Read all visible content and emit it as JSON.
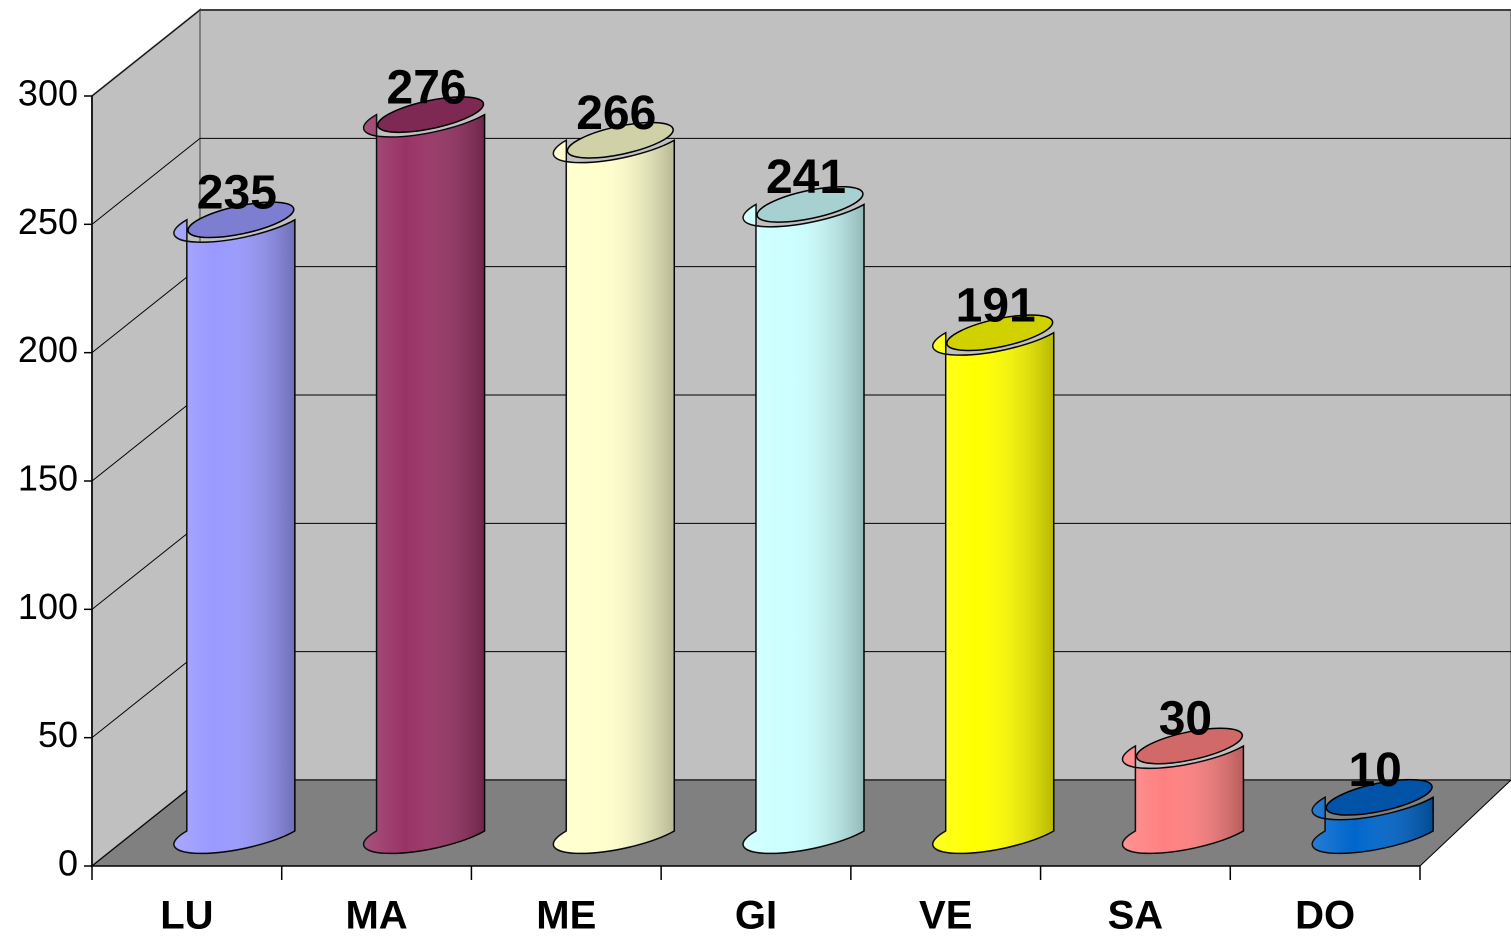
{
  "chart_data": {
    "type": "bar",
    "categories": [
      "LU",
      "MA",
      "ME",
      "GI",
      "VE",
      "SA",
      "DO"
    ],
    "values": [
      235,
      276,
      266,
      241,
      191,
      30,
      10
    ],
    "colors": [
      "#9999ff",
      "#993366",
      "#ffffcc",
      "#ccffff",
      "#ffff00",
      "#ff8080",
      "#0066cc"
    ],
    "ylim": [
      0,
      300
    ],
    "yticks": [
      0,
      50,
      100,
      150,
      200,
      250,
      300
    ],
    "grid": true
  }
}
